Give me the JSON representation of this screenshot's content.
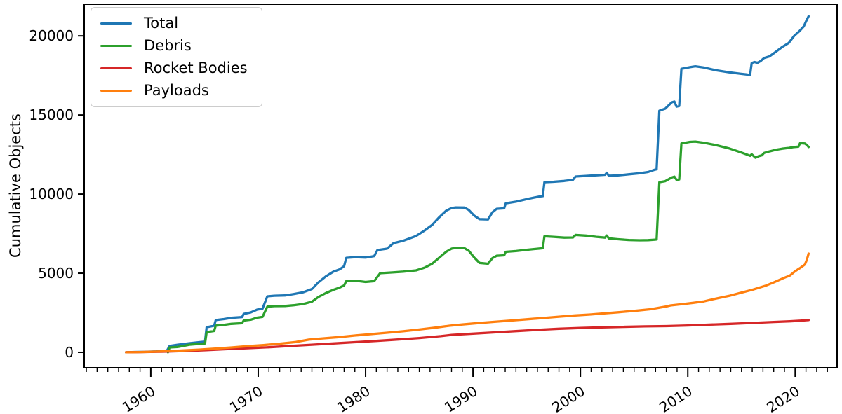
{
  "figure": {
    "background": "#ffffff"
  },
  "chart_data": {
    "type": "line",
    "title": "",
    "xlabel": "",
    "ylabel": "Cumulative Objects",
    "xlim": [
      1953.8,
      2023.9
    ],
    "ylim": [
      -975,
      22000
    ],
    "grid": false,
    "legend_position": "upper-left",
    "xticks_major": [
      1960,
      1970,
      1980,
      1990,
      2000,
      2010,
      2020
    ],
    "xticks_minor_range": [
      1954,
      2023
    ],
    "xticks_minor_step": 1,
    "yticks": [
      0,
      5000,
      10000,
      15000,
      20000
    ],
    "x_tick_label_rotation_deg": 33,
    "series": [
      {
        "name": "Total",
        "color": "#1f77b4",
        "points": [
          [
            1957.7,
            5
          ],
          [
            1958.5,
            20
          ],
          [
            1959.5,
            30
          ],
          [
            1960.5,
            55
          ],
          [
            1961.5,
            100
          ],
          [
            1961.75,
            400
          ],
          [
            1962.5,
            480
          ],
          [
            1963.6,
            575
          ],
          [
            1964.5,
            640
          ],
          [
            1965.05,
            680
          ],
          [
            1965.2,
            1590
          ],
          [
            1965.9,
            1680
          ],
          [
            1966.05,
            2040
          ],
          [
            1966.8,
            2100
          ],
          [
            1967.5,
            2180
          ],
          [
            1968.5,
            2230
          ],
          [
            1968.65,
            2430
          ],
          [
            1969.3,
            2520
          ],
          [
            1969.9,
            2700
          ],
          [
            1970.4,
            2760
          ],
          [
            1970.85,
            3540
          ],
          [
            1971.5,
            3580
          ],
          [
            1972.5,
            3600
          ],
          [
            1973.3,
            3680
          ],
          [
            1974.2,
            3800
          ],
          [
            1975.0,
            4000
          ],
          [
            1975.6,
            4420
          ],
          [
            1976.3,
            4800
          ],
          [
            1977.0,
            5100
          ],
          [
            1977.6,
            5250
          ],
          [
            1978.0,
            5450
          ],
          [
            1978.2,
            5970
          ],
          [
            1979.0,
            6010
          ],
          [
            1980.0,
            5990
          ],
          [
            1980.8,
            6080
          ],
          [
            1981.1,
            6460
          ],
          [
            1982.0,
            6550
          ],
          [
            1982.6,
            6900
          ],
          [
            1983.5,
            7050
          ],
          [
            1984.7,
            7350
          ],
          [
            1985.5,
            7700
          ],
          [
            1986.2,
            8050
          ],
          [
            1986.8,
            8500
          ],
          [
            1987.5,
            8950
          ],
          [
            1988.0,
            9120
          ],
          [
            1988.4,
            9160
          ],
          [
            1989.2,
            9150
          ],
          [
            1989.6,
            9000
          ],
          [
            1990.1,
            8650
          ],
          [
            1990.6,
            8420
          ],
          [
            1991.4,
            8400
          ],
          [
            1991.8,
            8850
          ],
          [
            1992.2,
            9070
          ],
          [
            1992.9,
            9100
          ],
          [
            1993.05,
            9420
          ],
          [
            1994.0,
            9520
          ],
          [
            1995.0,
            9680
          ],
          [
            1996.2,
            9850
          ],
          [
            1996.5,
            9870
          ],
          [
            1996.65,
            10750
          ],
          [
            1997.5,
            10780
          ],
          [
            1998.5,
            10830
          ],
          [
            1999.3,
            10900
          ],
          [
            1999.55,
            11110
          ],
          [
            2000.5,
            11150
          ],
          [
            2001.5,
            11190
          ],
          [
            2002.3,
            11220
          ],
          [
            2002.45,
            11350
          ],
          [
            2002.65,
            11160
          ],
          [
            2003.5,
            11180
          ],
          [
            2004.5,
            11250
          ],
          [
            2005.5,
            11320
          ],
          [
            2006.3,
            11400
          ],
          [
            2006.95,
            11550
          ],
          [
            2007.1,
            11570
          ],
          [
            2007.35,
            15270
          ],
          [
            2007.9,
            15400
          ],
          [
            2008.5,
            15800
          ],
          [
            2008.75,
            15850
          ],
          [
            2008.95,
            15530
          ],
          [
            2009.2,
            15570
          ],
          [
            2009.4,
            17920
          ],
          [
            2010.2,
            18020
          ],
          [
            2010.7,
            18080
          ],
          [
            2011.5,
            18000
          ],
          [
            2012.6,
            17830
          ],
          [
            2013.8,
            17700
          ],
          [
            2014.9,
            17610
          ],
          [
            2015.5,
            17560
          ],
          [
            2015.8,
            17520
          ],
          [
            2015.95,
            18280
          ],
          [
            2016.2,
            18350
          ],
          [
            2016.5,
            18300
          ],
          [
            2016.8,
            18420
          ],
          [
            2017.1,
            18600
          ],
          [
            2017.6,
            18700
          ],
          [
            2018.2,
            19000
          ],
          [
            2018.8,
            19300
          ],
          [
            2019.4,
            19550
          ],
          [
            2019.9,
            20000
          ],
          [
            2020.4,
            20300
          ],
          [
            2020.8,
            20600
          ],
          [
            2021.0,
            20900
          ],
          [
            2021.25,
            21240
          ]
        ]
      },
      {
        "name": "Debris",
        "color": "#2ca02c",
        "points": [
          [
            1961.6,
            5
          ],
          [
            1961.75,
            310
          ],
          [
            1962.5,
            340
          ],
          [
            1963.6,
            480
          ],
          [
            1964.5,
            530
          ],
          [
            1965.05,
            560
          ],
          [
            1965.2,
            1280
          ],
          [
            1965.9,
            1350
          ],
          [
            1966.05,
            1690
          ],
          [
            1966.8,
            1740
          ],
          [
            1967.5,
            1800
          ],
          [
            1968.5,
            1840
          ],
          [
            1968.65,
            2010
          ],
          [
            1969.3,
            2060
          ],
          [
            1969.9,
            2190
          ],
          [
            1970.4,
            2240
          ],
          [
            1970.85,
            2890
          ],
          [
            1971.5,
            2920
          ],
          [
            1972.5,
            2930
          ],
          [
            1973.3,
            2980
          ],
          [
            1974.2,
            3060
          ],
          [
            1975.0,
            3200
          ],
          [
            1975.6,
            3500
          ],
          [
            1976.3,
            3750
          ],
          [
            1977.0,
            3950
          ],
          [
            1977.6,
            4100
          ],
          [
            1978.0,
            4230
          ],
          [
            1978.2,
            4500
          ],
          [
            1979.0,
            4530
          ],
          [
            1980.0,
            4450
          ],
          [
            1980.8,
            4500
          ],
          [
            1981.35,
            5000
          ],
          [
            1982.5,
            5050
          ],
          [
            1983.5,
            5100
          ],
          [
            1984.7,
            5180
          ],
          [
            1985.5,
            5350
          ],
          [
            1986.2,
            5600
          ],
          [
            1986.8,
            5950
          ],
          [
            1987.5,
            6350
          ],
          [
            1988.0,
            6550
          ],
          [
            1988.4,
            6600
          ],
          [
            1989.2,
            6580
          ],
          [
            1989.6,
            6420
          ],
          [
            1990.1,
            6000
          ],
          [
            1990.6,
            5650
          ],
          [
            1991.4,
            5600
          ],
          [
            1991.8,
            5950
          ],
          [
            1992.2,
            6100
          ],
          [
            1992.9,
            6130
          ],
          [
            1993.05,
            6350
          ],
          [
            1994.0,
            6400
          ],
          [
            1995.0,
            6480
          ],
          [
            1996.2,
            6560
          ],
          [
            1996.5,
            6580
          ],
          [
            1996.65,
            7330
          ],
          [
            1997.5,
            7300
          ],
          [
            1998.5,
            7250
          ],
          [
            1999.3,
            7260
          ],
          [
            1999.55,
            7420
          ],
          [
            2000.5,
            7380
          ],
          [
            2001.5,
            7300
          ],
          [
            2002.3,
            7250
          ],
          [
            2002.45,
            7380
          ],
          [
            2002.65,
            7200
          ],
          [
            2003.5,
            7150
          ],
          [
            2004.5,
            7100
          ],
          [
            2005.5,
            7080
          ],
          [
            2006.3,
            7090
          ],
          [
            2006.95,
            7120
          ],
          [
            2007.1,
            7130
          ],
          [
            2007.35,
            10750
          ],
          [
            2007.9,
            10820
          ],
          [
            2008.5,
            11050
          ],
          [
            2008.75,
            11100
          ],
          [
            2008.95,
            10900
          ],
          [
            2009.2,
            10930
          ],
          [
            2009.4,
            13200
          ],
          [
            2010.2,
            13300
          ],
          [
            2010.7,
            13320
          ],
          [
            2011.5,
            13250
          ],
          [
            2012.6,
            13100
          ],
          [
            2013.8,
            12900
          ],
          [
            2014.9,
            12650
          ],
          [
            2015.5,
            12500
          ],
          [
            2015.8,
            12420
          ],
          [
            2015.95,
            12520
          ],
          [
            2016.3,
            12300
          ],
          [
            2016.6,
            12400
          ],
          [
            2016.9,
            12450
          ],
          [
            2017.1,
            12600
          ],
          [
            2017.6,
            12700
          ],
          [
            2018.2,
            12800
          ],
          [
            2018.8,
            12870
          ],
          [
            2019.4,
            12920
          ],
          [
            2019.9,
            12980
          ],
          [
            2020.3,
            13000
          ],
          [
            2020.45,
            13220
          ],
          [
            2020.9,
            13200
          ],
          [
            2021.1,
            13100
          ],
          [
            2021.25,
            12980
          ]
        ]
      },
      {
        "name": "Rocket Bodies",
        "color": "#d62728",
        "points": [
          [
            1957.7,
            3
          ],
          [
            1959.0,
            15
          ],
          [
            1961.0,
            40
          ],
          [
            1963.0,
            80
          ],
          [
            1965.0,
            130
          ],
          [
            1967.0,
            200
          ],
          [
            1969.0,
            260
          ],
          [
            1971.0,
            320
          ],
          [
            1973.0,
            400
          ],
          [
            1975.0,
            480
          ],
          [
            1977.0,
            560
          ],
          [
            1979.0,
            640
          ],
          [
            1981.0,
            720
          ],
          [
            1983.0,
            810
          ],
          [
            1985.0,
            900
          ],
          [
            1987.0,
            1020
          ],
          [
            1988.0,
            1100
          ],
          [
            1990.0,
            1180
          ],
          [
            1992.0,
            1260
          ],
          [
            1994.0,
            1340
          ],
          [
            1996.0,
            1420
          ],
          [
            1998.0,
            1490
          ],
          [
            2000.0,
            1540
          ],
          [
            2002.0,
            1580
          ],
          [
            2004.0,
            1610
          ],
          [
            2006.0,
            1640
          ],
          [
            2008.0,
            1660
          ],
          [
            2010.0,
            1700
          ],
          [
            2012.0,
            1750
          ],
          [
            2014.0,
            1800
          ],
          [
            2016.0,
            1860
          ],
          [
            2018.0,
            1920
          ],
          [
            2019.5,
            1960
          ],
          [
            2020.5,
            2000
          ],
          [
            2021.25,
            2040
          ]
        ]
      },
      {
        "name": "Payloads",
        "color": "#ff7f0e",
        "points": [
          [
            1957.7,
            3
          ],
          [
            1959.0,
            15
          ],
          [
            1960.0,
            35
          ],
          [
            1961.5,
            70
          ],
          [
            1963.0,
            120
          ],
          [
            1964.5,
            170
          ],
          [
            1966.0,
            240
          ],
          [
            1967.5,
            310
          ],
          [
            1969.0,
            390
          ],
          [
            1970.5,
            460
          ],
          [
            1972.0,
            550
          ],
          [
            1973.5,
            650
          ],
          [
            1974.7,
            800
          ],
          [
            1976.0,
            880
          ],
          [
            1977.5,
            960
          ],
          [
            1979.0,
            1060
          ],
          [
            1980.5,
            1150
          ],
          [
            1982.0,
            1240
          ],
          [
            1983.5,
            1330
          ],
          [
            1985.0,
            1440
          ],
          [
            1986.5,
            1560
          ],
          [
            1987.8,
            1680
          ],
          [
            1989.0,
            1760
          ],
          [
            1990.5,
            1850
          ],
          [
            1992.0,
            1930
          ],
          [
            1993.5,
            2010
          ],
          [
            1995.0,
            2090
          ],
          [
            1996.5,
            2170
          ],
          [
            1998.0,
            2250
          ],
          [
            1999.5,
            2330
          ],
          [
            2000.9,
            2390
          ],
          [
            2002.0,
            2450
          ],
          [
            2003.5,
            2530
          ],
          [
            2005.0,
            2620
          ],
          [
            2006.5,
            2720
          ],
          [
            2008.0,
            2900
          ],
          [
            2008.4,
            2965
          ],
          [
            2009.5,
            3050
          ],
          [
            2010.5,
            3130
          ],
          [
            2011.5,
            3220
          ],
          [
            2012.5,
            3380
          ],
          [
            2013.9,
            3580
          ],
          [
            2015.0,
            3780
          ],
          [
            2016.0,
            3950
          ],
          [
            2017.2,
            4200
          ],
          [
            2018.0,
            4420
          ],
          [
            2018.9,
            4690
          ],
          [
            2019.5,
            4850
          ],
          [
            2020.0,
            5130
          ],
          [
            2020.5,
            5350
          ],
          [
            2020.9,
            5550
          ],
          [
            2021.05,
            5800
          ],
          [
            2021.15,
            6000
          ],
          [
            2021.25,
            6240
          ]
        ]
      }
    ]
  }
}
